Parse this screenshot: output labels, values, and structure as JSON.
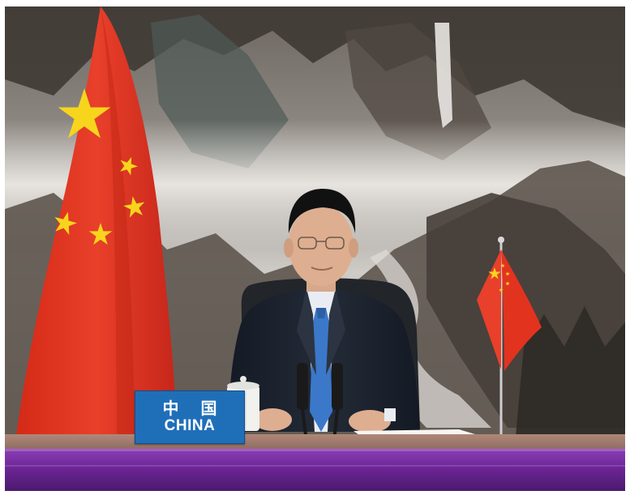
{
  "scene": {
    "nameplate": {
      "chinese": "中 国",
      "english": "CHINA"
    },
    "elements": [
      "landscape-painting-backdrop",
      "large-china-flag",
      "desk-china-flag",
      "speaker",
      "microphones",
      "table"
    ],
    "colors": {
      "flag_red": "#e2331f",
      "star_yellow": "#f7d51d",
      "nameplate_blue": "#1f6fb8",
      "tie_blue": "#3b78c9",
      "suit": "#1c2330",
      "table_purple": "#7a2aa0"
    }
  }
}
